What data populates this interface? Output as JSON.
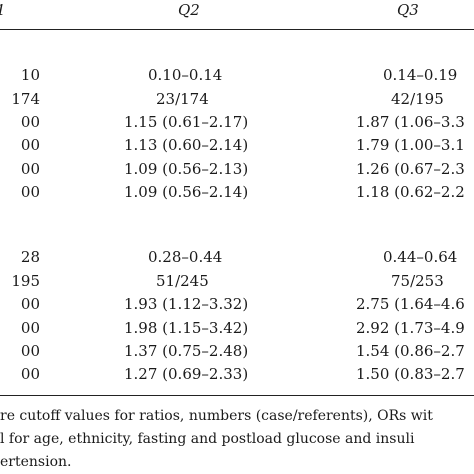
{
  "header": {
    "q1": "1",
    "q2": "Q2",
    "q3": "Q3"
  },
  "block1": {
    "rows": [
      {
        "q1": "10",
        "q2": "0.10–0.14",
        "q3": "0.14–0.19"
      },
      {
        "q1": "174",
        "q2": "23/174",
        "q3": "42/195"
      },
      {
        "q1": "00",
        "q2": "1.15 (0.61–2.17)",
        "q3": "1.87 (1.06–3.3"
      },
      {
        "q1": "00",
        "q2": "1.13 (0.60–2.14)",
        "q3": "1.79 (1.00–3.1"
      },
      {
        "q1": "00",
        "q2": "1.09 (0.56–2.13)",
        "q3": "1.26 (0.67–2.3"
      },
      {
        "q1": "00",
        "q2": "1.09 (0.56–2.14)",
        "q3": "1.18 (0.62–2.2"
      }
    ]
  },
  "block2": {
    "rows": [
      {
        "q1": "28",
        "q2": "0.28–0.44",
        "q3": "0.44–0.64"
      },
      {
        "q1": "195",
        "q2": "51/245",
        "q3": "75/253"
      },
      {
        "q1": "00",
        "q2": "1.93 (1.12–3.32)",
        "q3": "2.75 (1.64–4.6"
      },
      {
        "q1": "00",
        "q2": "1.98 (1.15–3.42)",
        "q3": "2.92 (1.73–4.9"
      },
      {
        "q1": "00",
        "q2": "1.37 (0.75–2.48)",
        "q3": "1.54 (0.86–2.7"
      },
      {
        "q1": "00",
        "q2": "1.27 (0.69–2.33)",
        "q3": "1.50 (0.83–2.7"
      }
    ]
  },
  "footnote": {
    "line1": "re cutoff values for ratios, numbers (case/referents), ORs wit",
    "line2": "l for age, ethnicity, fasting and postload glucose and insuli",
    "line3": "ertension."
  }
}
